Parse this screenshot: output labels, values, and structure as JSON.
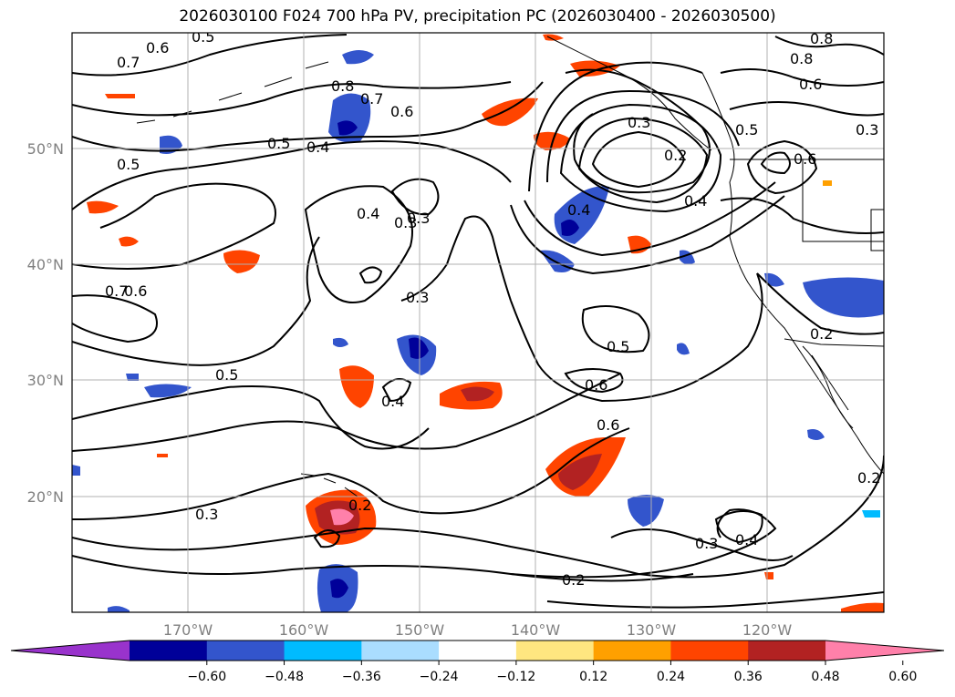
{
  "title": "2026030100 F024 700 hPa PV, precipitation PC (2026030400 - 2026030500)",
  "longitude_ticks": [
    "170°W",
    "160°W",
    "150°W",
    "140°W",
    "130°W",
    "120°W"
  ],
  "latitude_ticks": [
    "50°N",
    "40°N",
    "30°N",
    "20°N"
  ],
  "contour_labels": [
    "0.5",
    "0.6",
    "0.7",
    "0.8",
    "0.7",
    "0.6",
    "0.5",
    "0.4",
    "0.5",
    "0.4",
    "0.3",
    "0.3",
    "0.3",
    "0.4",
    "0.2",
    "0.5",
    "0.6",
    "0.4",
    "0.8",
    "0.8",
    "0.6",
    "0.3",
    "0.6",
    "0.7",
    "0.6",
    "0.5",
    "0.4",
    "0.5",
    "0.6",
    "0.3",
    "0.2",
    "0.3",
    "0.4",
    "0.3",
    "0.2",
    "0.2",
    "0.2"
  ],
  "colorbar": {
    "colors": [
      "#9933cc",
      "#000099",
      "#3355cc",
      "#00bbff",
      "#aaddff",
      "#ffffff",
      "#ffe680",
      "#ffa000",
      "#ff4400",
      "#b22222",
      "#ff80aa"
    ],
    "tick_labels": [
      "−0.60",
      "−0.48",
      "−0.36",
      "−0.24",
      "−0.12",
      "0.12",
      "0.24",
      "0.36",
      "0.48",
      "0.60"
    ]
  }
}
